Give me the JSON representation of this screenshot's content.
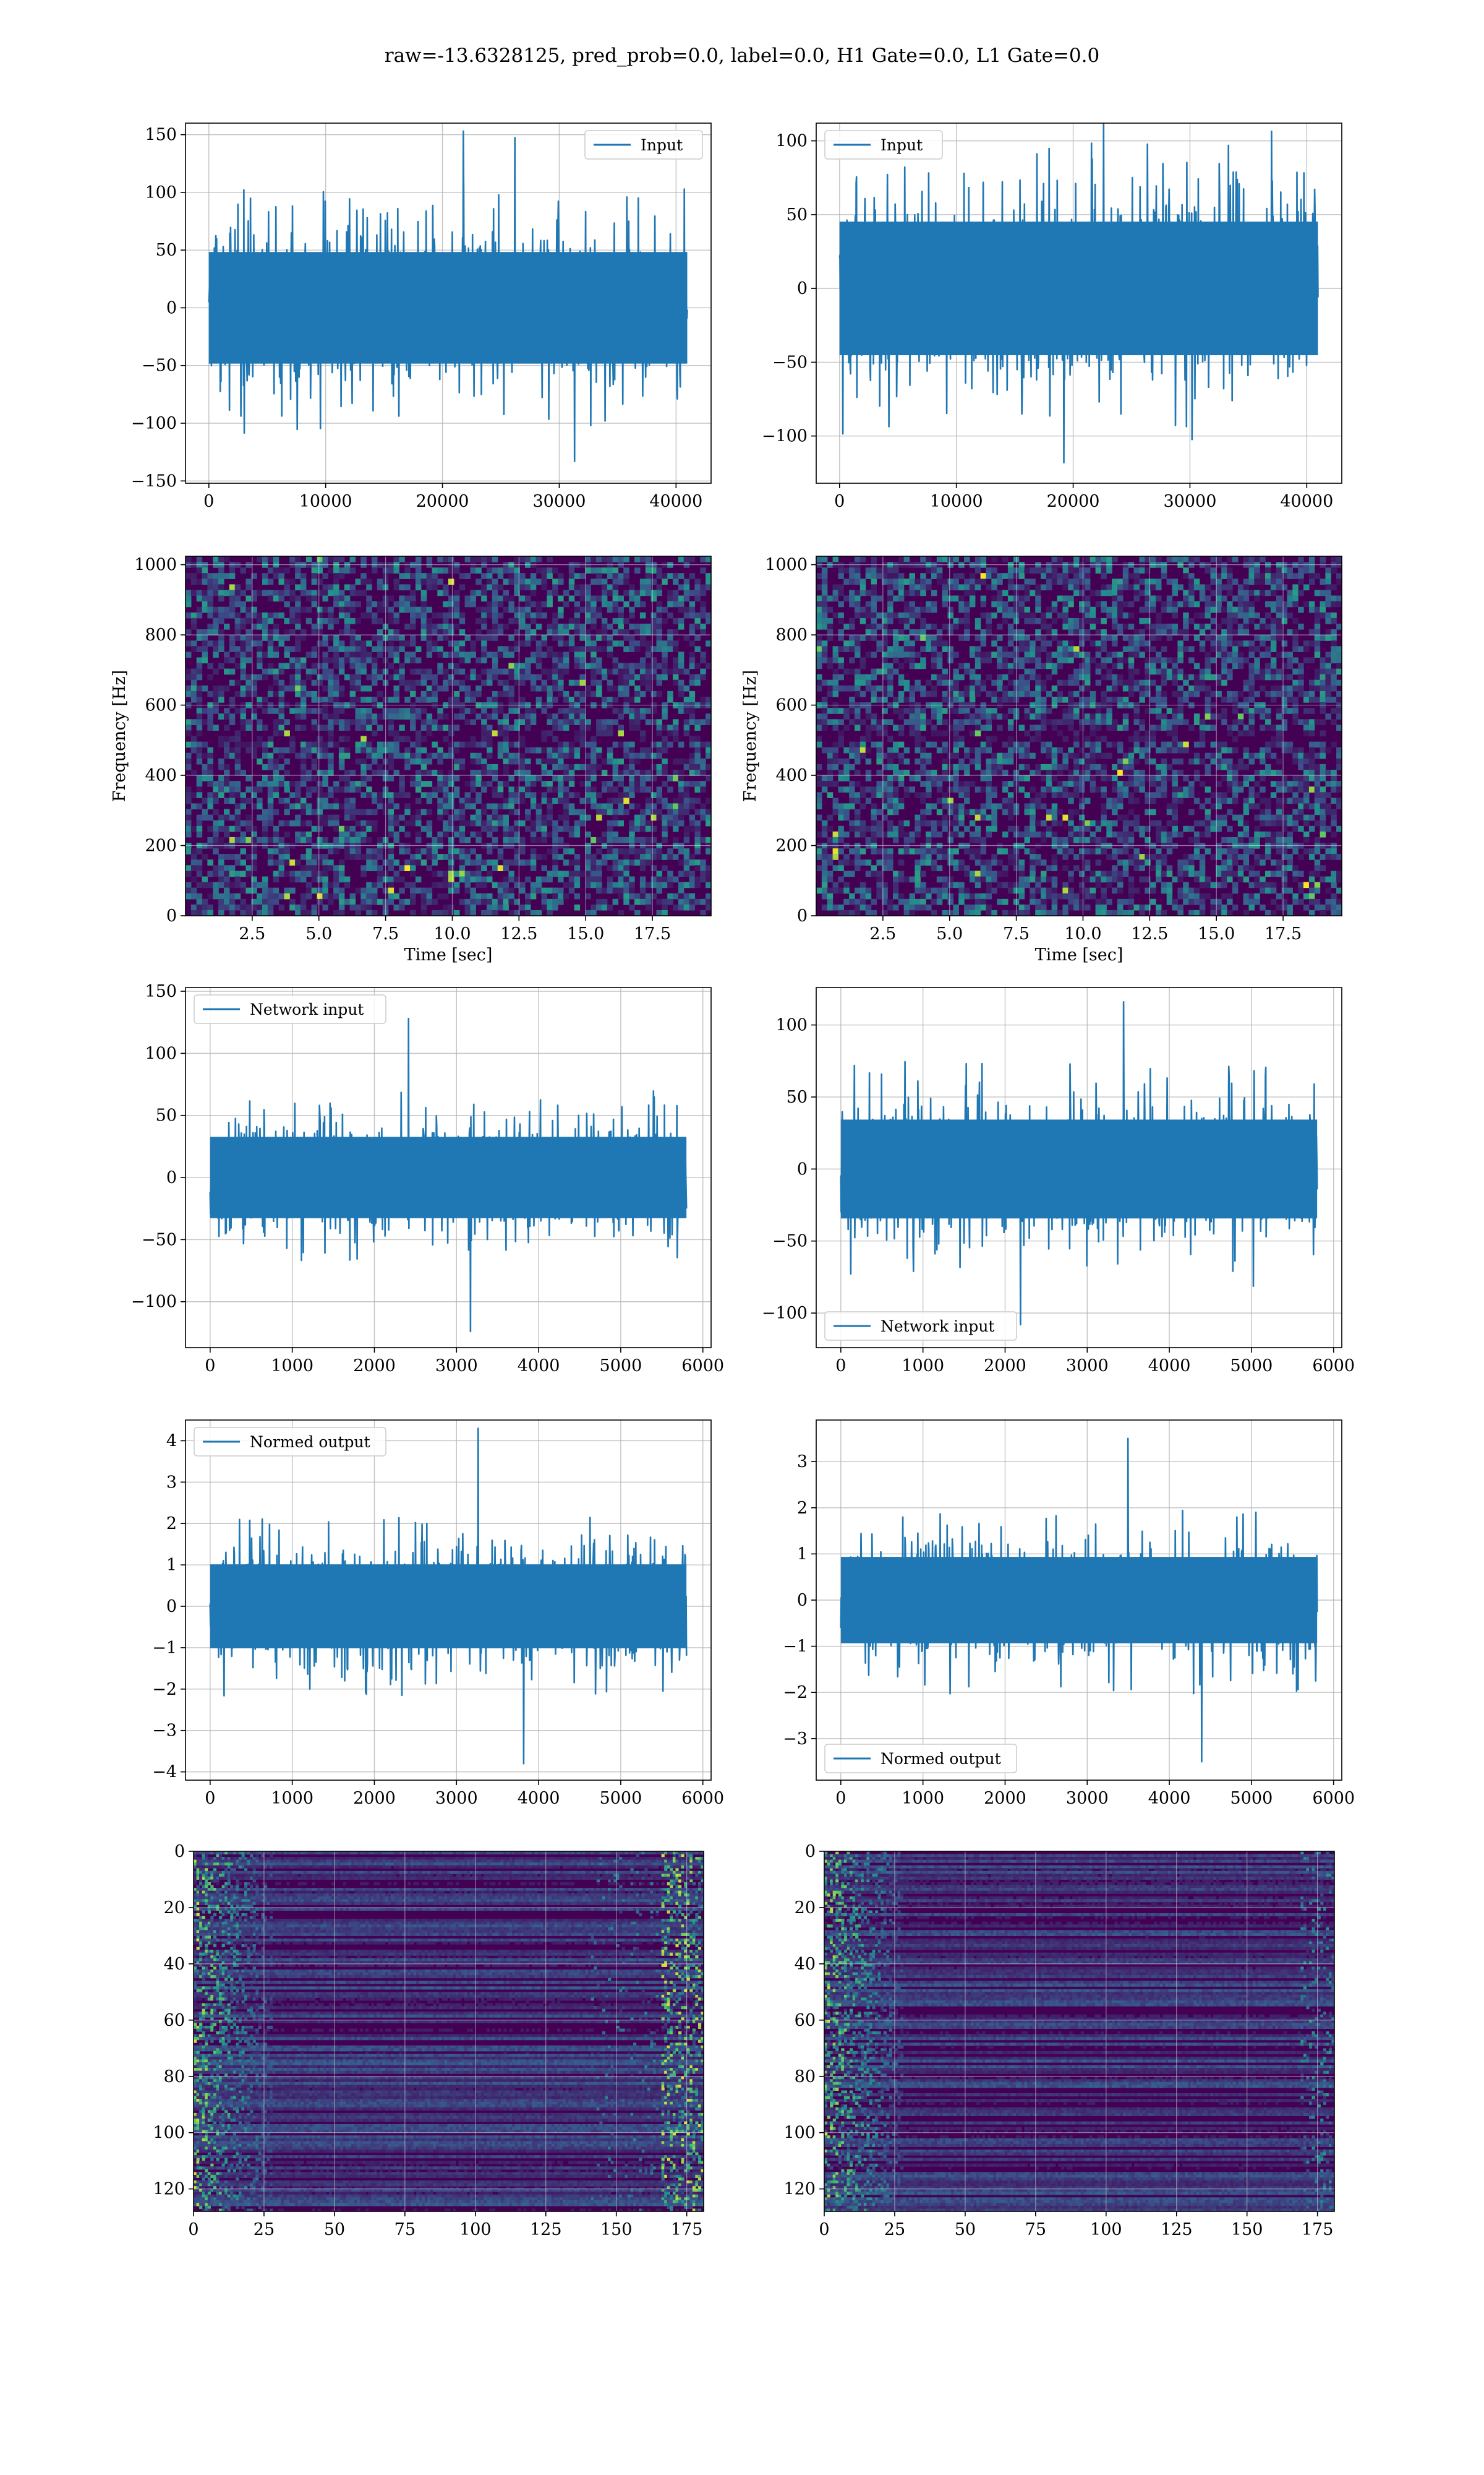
{
  "figure": {
    "title": "raw=-13.6328125, pred_prob=0.0, label=0.0, H1 Gate=0.0, L1 Gate=0.0",
    "colors": {
      "series": "#1f77b4",
      "grid": "#b0b0b0",
      "viridis_dark": "#440154",
      "viridis_mid": "#3b528b",
      "viridis_teal": "#21918c",
      "viridis_yellow": "#fde725"
    }
  },
  "chart_data": [
    {
      "id": "h1-input",
      "type": "line",
      "grid": true,
      "legend_position": "top-right",
      "series": [
        {
          "name": "Input",
          "x_range": [
            0,
            40960
          ],
          "envelope": {
            "typical_amplitude": 62,
            "max": 153,
            "min": -133
          }
        }
      ],
      "xlim": [
        -2000,
        43000
      ],
      "ylim": [
        -152,
        160
      ],
      "xticks": [
        0,
        10000,
        20000,
        30000,
        40000
      ],
      "xtick_labels": [
        "0",
        "10000",
        "20000",
        "30000",
        "40000"
      ],
      "yticks": [
        -150,
        -100,
        -50,
        0,
        50,
        100,
        150
      ],
      "ytick_labels": [
        "−150",
        "−100",
        "−50",
        "0",
        "50",
        "100",
        "150"
      ],
      "xlabel": "",
      "ylabel": ""
    },
    {
      "id": "l1-input",
      "type": "line",
      "grid": true,
      "legend_position": "top-left",
      "series": [
        {
          "name": "Input",
          "x_range": [
            0,
            40960
          ],
          "envelope": {
            "typical_amplitude": 58,
            "max": 112,
            "min": -118
          }
        }
      ],
      "xlim": [
        -2000,
        43000
      ],
      "ylim": [
        -132,
        112
      ],
      "xticks": [
        0,
        10000,
        20000,
        30000,
        40000
      ],
      "xtick_labels": [
        "0",
        "10000",
        "20000",
        "30000",
        "40000"
      ],
      "yticks": [
        -100,
        -50,
        0,
        50,
        100
      ],
      "ytick_labels": [
        "−100",
        "−50",
        "0",
        "50",
        "100"
      ],
      "xlabel": "",
      "ylabel": ""
    },
    {
      "id": "h1-spectrogram",
      "type": "heatmap",
      "grid": true,
      "colormap": "viridis",
      "xlim": [
        0,
        19.7
      ],
      "ylim": [
        0,
        1024
      ],
      "xticks": [
        2.5,
        5.0,
        7.5,
        10.0,
        12.5,
        15.0,
        17.5
      ],
      "xtick_labels": [
        "2.5",
        "5.0",
        "7.5",
        "10.0",
        "12.5",
        "15.0",
        "17.5"
      ],
      "yticks": [
        0,
        200,
        400,
        600,
        800,
        1000
      ],
      "ytick_labels": [
        "0",
        "200",
        "400",
        "600",
        "800",
        "1000"
      ],
      "xlabel": "Time [sec]",
      "ylabel": "Frequency [Hz]"
    },
    {
      "id": "l1-spectrogram",
      "type": "heatmap",
      "grid": true,
      "colormap": "viridis",
      "xlim": [
        0,
        19.7
      ],
      "ylim": [
        0,
        1024
      ],
      "xticks": [
        2.5,
        5.0,
        7.5,
        10.0,
        12.5,
        15.0,
        17.5
      ],
      "xtick_labels": [
        "2.5",
        "5.0",
        "7.5",
        "10.0",
        "12.5",
        "15.0",
        "17.5"
      ],
      "yticks": [
        0,
        200,
        400,
        600,
        800,
        1000
      ],
      "ytick_labels": [
        "0",
        "200",
        "400",
        "600",
        "800",
        "1000"
      ],
      "xlabel": "Time [sec]",
      "ylabel": "Frequency [Hz]"
    },
    {
      "id": "h1-network-input",
      "type": "line",
      "grid": true,
      "legend_position": "top-left",
      "series": [
        {
          "name": "Network input",
          "x_range": [
            0,
            5800
          ],
          "envelope": {
            "typical_amplitude": 42,
            "max": 128,
            "min": -124
          }
        }
      ],
      "xlim": [
        -300,
        6100
      ],
      "ylim": [
        -137,
        153
      ],
      "xticks": [
        0,
        1000,
        2000,
        3000,
        4000,
        5000,
        6000
      ],
      "xtick_labels": [
        "0",
        "1000",
        "2000",
        "3000",
        "4000",
        "5000",
        "6000"
      ],
      "yticks": [
        -100,
        -50,
        0,
        50,
        100,
        150
      ],
      "ytick_labels": [
        "−100",
        "−50",
        "0",
        "50",
        "100",
        "150"
      ],
      "xlabel": "",
      "ylabel": ""
    },
    {
      "id": "l1-network-input",
      "type": "line",
      "grid": true,
      "legend_position": "bottom-left",
      "series": [
        {
          "name": "Network input",
          "x_range": [
            0,
            5800
          ],
          "envelope": {
            "typical_amplitude": 44,
            "max": 116,
            "min": -108
          }
        }
      ],
      "xlim": [
        -300,
        6100
      ],
      "ylim": [
        -124,
        126
      ],
      "xticks": [
        0,
        1000,
        2000,
        3000,
        4000,
        5000,
        6000
      ],
      "xtick_labels": [
        "0",
        "1000",
        "2000",
        "3000",
        "4000",
        "5000",
        "6000"
      ],
      "yticks": [
        -100,
        -50,
        0,
        50,
        100
      ],
      "ytick_labels": [
        "−100",
        "−50",
        "0",
        "50",
        "100"
      ],
      "xlabel": "",
      "ylabel": ""
    },
    {
      "id": "h1-normed-output",
      "type": "line",
      "grid": true,
      "legend_position": "top-left",
      "series": [
        {
          "name": "Normed output",
          "x_range": [
            0,
            5800
          ],
          "envelope": {
            "typical_amplitude": 1.3,
            "max": 4.3,
            "min": -3.8
          }
        }
      ],
      "xlim": [
        -300,
        6100
      ],
      "ylim": [
        -4.2,
        4.5
      ],
      "xticks": [
        0,
        1000,
        2000,
        3000,
        4000,
        5000,
        6000
      ],
      "xtick_labels": [
        "0",
        "1000",
        "2000",
        "3000",
        "4000",
        "5000",
        "6000"
      ],
      "yticks": [
        -4,
        -3,
        -2,
        -1,
        0,
        1,
        2,
        3,
        4
      ],
      "ytick_labels": [
        "−4",
        "−3",
        "−2",
        "−1",
        "0",
        "1",
        "2",
        "3",
        "4"
      ],
      "xlabel": "",
      "ylabel": ""
    },
    {
      "id": "l1-normed-output",
      "type": "line",
      "grid": true,
      "legend_position": "bottom-left",
      "series": [
        {
          "name": "Normed output",
          "x_range": [
            0,
            5800
          ],
          "envelope": {
            "typical_amplitude": 1.2,
            "max": 3.5,
            "min": -3.5
          }
        }
      ],
      "xlim": [
        -300,
        6100
      ],
      "ylim": [
        -3.9,
        3.9
      ],
      "xticks": [
        0,
        1000,
        2000,
        3000,
        4000,
        5000,
        6000
      ],
      "xtick_labels": [
        "0",
        "1000",
        "2000",
        "3000",
        "4000",
        "5000",
        "6000"
      ],
      "yticks": [
        -3,
        -2,
        -1,
        0,
        1,
        2,
        3
      ],
      "ytick_labels": [
        "−3",
        "−2",
        "−1",
        "0",
        "1",
        "2",
        "3"
      ],
      "xlabel": "",
      "ylabel": ""
    },
    {
      "id": "h1-feature-map",
      "type": "heatmap",
      "grid": true,
      "colormap": "viridis",
      "y_inverted": true,
      "xlim": [
        0,
        181
      ],
      "ylim": [
        128,
        0
      ],
      "xticks": [
        0,
        25,
        50,
        75,
        100,
        125,
        150,
        175
      ],
      "xtick_labels": [
        "0",
        "25",
        "50",
        "75",
        "100",
        "125",
        "150",
        "175"
      ],
      "yticks": [
        0,
        20,
        40,
        60,
        80,
        100,
        120
      ],
      "ytick_labels": [
        "0",
        "20",
        "40",
        "60",
        "80",
        "100",
        "120"
      ],
      "xlabel": "",
      "ylabel": ""
    },
    {
      "id": "l1-feature-map",
      "type": "heatmap",
      "grid": true,
      "colormap": "viridis",
      "y_inverted": true,
      "xlim": [
        0,
        181
      ],
      "ylim": [
        128,
        0
      ],
      "xticks": [
        0,
        25,
        50,
        75,
        100,
        125,
        150,
        175
      ],
      "xtick_labels": [
        "0",
        "25",
        "50",
        "75",
        "100",
        "125",
        "150",
        "175"
      ],
      "yticks": [
        0,
        20,
        40,
        60,
        80,
        100,
        120
      ],
      "ytick_labels": [
        "0",
        "20",
        "40",
        "60",
        "80",
        "100",
        "120"
      ],
      "xlabel": "",
      "ylabel": ""
    }
  ]
}
